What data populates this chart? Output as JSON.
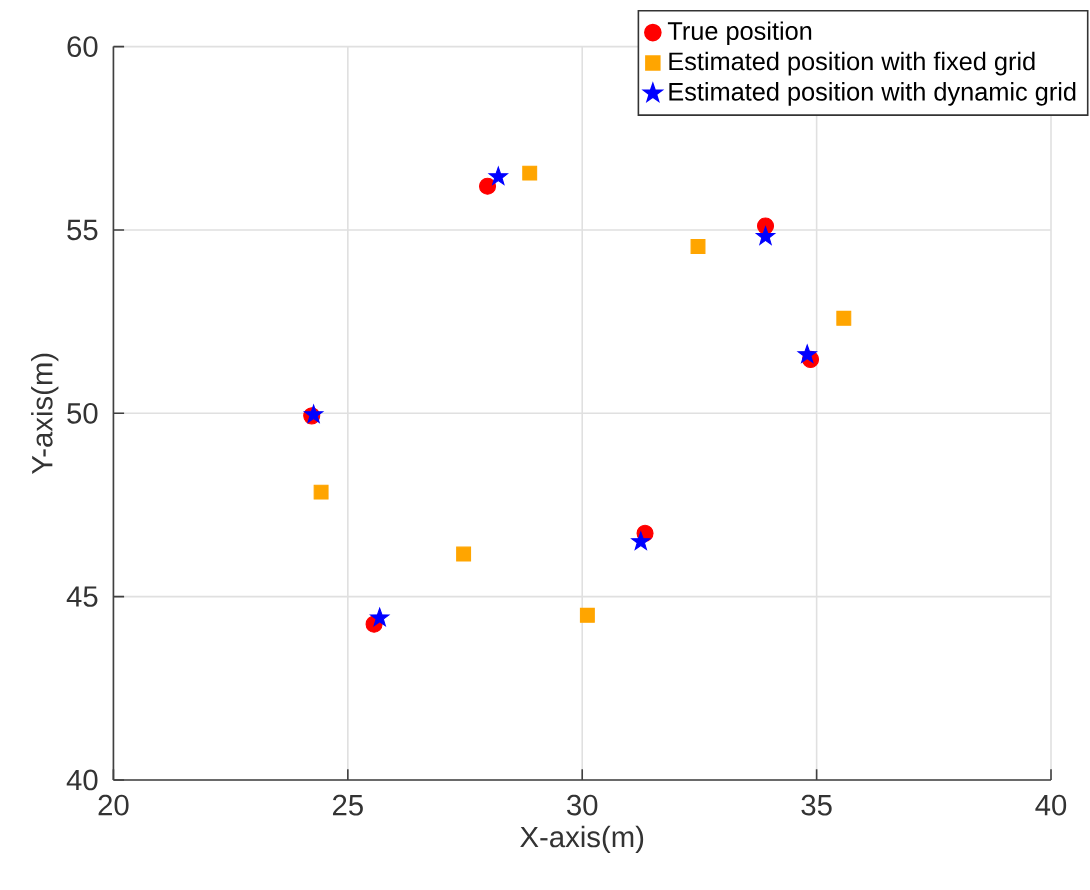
{
  "chart_data": {
    "type": "scatter",
    "xlabel": "X-axis(m)",
    "ylabel": "Y-axis(m)",
    "xlim": [
      20,
      40
    ],
    "ylim": [
      40,
      60
    ],
    "xticks": [
      20,
      25,
      30,
      35,
      40
    ],
    "yticks": [
      40,
      45,
      50,
      55,
      60
    ],
    "grid": true,
    "legend": "top right",
    "series": [
      {
        "name": "True position",
        "color": "#ff0000",
        "marker": "circle",
        "x": [
          24.23,
          25.56,
          27.98,
          31.34,
          33.91,
          34.87
        ],
        "values": [
          49.93,
          44.25,
          56.19,
          46.73,
          55.11,
          51.47
        ]
      },
      {
        "name": "Estimated position with fixed grid",
        "color": "#ffa500",
        "marker": "square",
        "x": [
          24.43,
          27.47,
          28.88,
          30.11,
          32.47,
          35.58
        ],
        "values": [
          47.85,
          46.16,
          56.55,
          44.49,
          54.55,
          52.59
        ]
      },
      {
        "name": "Estimated position with dynamic grid",
        "color": "#0000ff",
        "marker": "star",
        "x": [
          24.27,
          25.68,
          28.21,
          31.25,
          33.91,
          34.8
        ],
        "values": [
          49.96,
          44.42,
          56.45,
          46.5,
          54.82,
          51.6
        ]
      }
    ]
  }
}
